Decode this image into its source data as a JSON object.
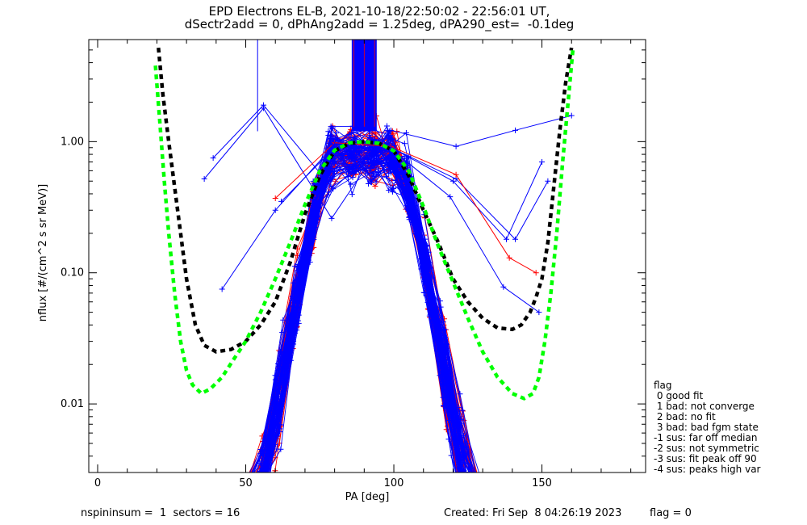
{
  "chart_data": {
    "type": "line",
    "title_line1": "EPD Electrons EL-B, 2021-10-18/22:50:02 - 22:56:01 UT,",
    "title_line2": "dSectr2add = 0, dPhAng2add = 1.25deg, dPA290_est=  -0.1deg",
    "xlabel": "PA [deg]",
    "ylabel": "nflux [#/(cm^2 s sr MeV)]",
    "xlim": [
      -3,
      185
    ],
    "ylim": [
      0.003,
      6.0
    ],
    "yscale": "log",
    "x_ticks": [
      0,
      50,
      100,
      150
    ],
    "x_tick_labels": [
      "0",
      "50",
      "100",
      "150"
    ],
    "y_ticks": [
      0.01,
      0.1,
      1.0
    ],
    "y_tick_labels": [
      "0.01",
      "0.10",
      "1.00"
    ],
    "grid": false,
    "colors": {
      "sectors_a": "#ff0000",
      "sectors_b": "#0000ff",
      "fit_green": "#00ff00",
      "fit_black": "#000000",
      "axes": "#000000"
    },
    "series": [
      {
        "color_key": "fit_black",
        "style": "dashed",
        "x": [
          20.5,
          22,
          24,
          26,
          28,
          30,
          33,
          36,
          40,
          45,
          50,
          55,
          60,
          65,
          70,
          75,
          80,
          85,
          90,
          95,
          100,
          105,
          110,
          115,
          120,
          125,
          130,
          135,
          140,
          143,
          146,
          148,
          150,
          152,
          154,
          156,
          158,
          160
        ],
        "y": [
          5.2,
          2.3,
          1.0,
          0.45,
          0.2,
          0.09,
          0.04,
          0.028,
          0.025,
          0.026,
          0.03,
          0.04,
          0.06,
          0.12,
          0.28,
          0.55,
          0.85,
          0.97,
          1.0,
          0.97,
          0.85,
          0.55,
          0.3,
          0.17,
          0.09,
          0.06,
          0.045,
          0.038,
          0.037,
          0.04,
          0.05,
          0.065,
          0.09,
          0.17,
          0.45,
          1.2,
          2.8,
          5.2
        ]
      },
      {
        "color_key": "fit_green",
        "style": "dashed",
        "x": [
          19.5,
          21,
          22.5,
          24,
          26,
          28,
          30,
          32,
          35,
          38,
          42,
          46,
          50,
          55,
          60,
          65,
          70,
          75,
          80,
          85,
          90,
          95,
          100,
          105,
          110,
          115,
          120,
          125,
          130,
          135,
          140,
          144,
          147,
          149,
          151,
          153,
          155,
          157,
          159,
          160.5
        ],
        "y": [
          3.8,
          1.4,
          0.5,
          0.2,
          0.07,
          0.03,
          0.018,
          0.014,
          0.012,
          0.013,
          0.016,
          0.022,
          0.03,
          0.05,
          0.09,
          0.17,
          0.33,
          0.6,
          0.86,
          0.98,
          1.0,
          0.97,
          0.85,
          0.6,
          0.32,
          0.16,
          0.085,
          0.045,
          0.025,
          0.016,
          0.012,
          0.011,
          0.012,
          0.016,
          0.03,
          0.07,
          0.2,
          0.7,
          2.2,
          5.2
        ]
      }
    ],
    "vertical_spikes": [
      {
        "x": 54,
        "y_low": 1.2,
        "y_high": 6.0,
        "color_key": "sectors_b",
        "width": 1
      },
      {
        "x_from": 86,
        "x_to": 94,
        "y_low": 1.2,
        "y_high": 6.0,
        "color_key": "sectors_b",
        "width": 1.6,
        "count": 26
      },
      {
        "x_from": 86.5,
        "x_to": 93.5,
        "y_low": 1.3,
        "y_high": 6.0,
        "color_key": "sectors_a",
        "width": 0.8,
        "count": 3
      }
    ],
    "outlier_series": [
      {
        "color_key": "sectors_b",
        "x": [
          36,
          56,
          79,
          99,
          121,
          141,
          160
        ],
        "y": [
          0.52,
          1.8,
          0.26,
          1.22,
          0.92,
          1.22,
          1.58
        ]
      },
      {
        "color_key": "sectors_b",
        "x": [
          39,
          56,
          79,
          99,
          121,
          141,
          152
        ],
        "y": [
          0.75,
          1.9,
          0.45,
          0.9,
          0.52,
          0.18,
          0.5
        ]
      },
      {
        "color_key": "sectors_b",
        "x": [
          62,
          80,
          99,
          120,
          138,
          150
        ],
        "y": [
          0.35,
          0.9,
          0.9,
          0.5,
          0.18,
          0.7
        ]
      },
      {
        "color_key": "sectors_a",
        "x": [
          60,
          80,
          99,
          121,
          139,
          148
        ],
        "y": [
          0.37,
          0.98,
          0.92,
          0.56,
          0.13,
          0.1
        ]
      },
      {
        "color_key": "sectors_b",
        "x": [
          42,
          60,
          80,
          99,
          119,
          137,
          149
        ],
        "y": [
          0.075,
          0.3,
          0.95,
          0.88,
          0.38,
          0.078,
          0.05
        ]
      }
    ],
    "bundle": {
      "x": [
        31,
        37,
        43,
        49,
        55,
        61,
        67,
        73,
        79,
        86,
        93,
        99,
        105,
        111,
        117,
        123,
        129,
        135,
        141,
        147,
        151
      ],
      "left_x_range": [
        28,
        52
      ],
      "right_x_range": [
        130,
        152
      ],
      "n_red": 45,
      "n_blue": 70
    },
    "legend": {
      "title": "flag",
      "items": [
        " 0 good fit",
        " 1 bad: not converge",
        " 2 bad: no fit",
        " 3 bad: bad fgm state",
        "-1 sus: far off median",
        "-2 sus: not symmetric",
        "-3 sus: fit peak off 90",
        "-4 sus: peaks high var"
      ]
    }
  },
  "footer": {
    "left": "nspininsum =  1  sectors = 16",
    "created": "Created: Fri Sep  8 04:26:19 2023",
    "flag": "flag = 0"
  }
}
